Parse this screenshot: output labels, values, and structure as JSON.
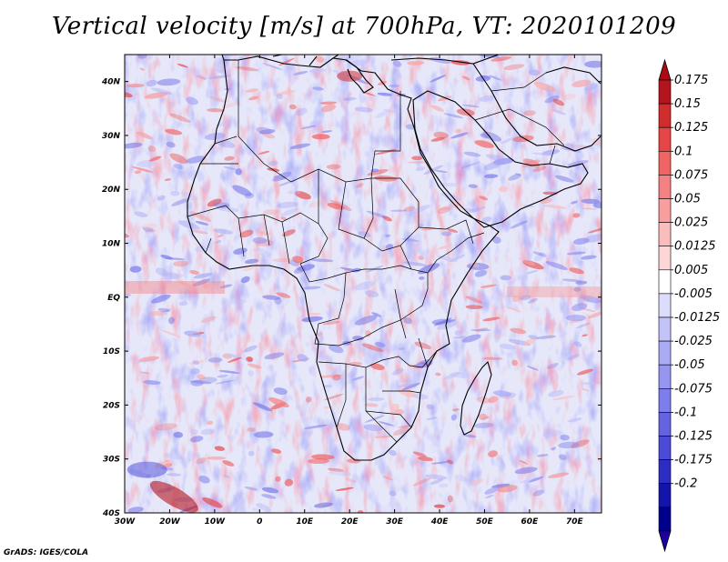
{
  "title": "Vertical velocity [m/s] at 700hPa, VT: 2020101209",
  "credit": "GrADS: IGES/COLA",
  "map": {
    "lon_range": [
      -30,
      76
    ],
    "lat_range": [
      -40,
      45
    ],
    "lat_ticks": [
      {
        "value": 40,
        "label": "40N"
      },
      {
        "value": 30,
        "label": "30N"
      },
      {
        "value": 20,
        "label": "20N"
      },
      {
        "value": 10,
        "label": "10N"
      },
      {
        "value": 0,
        "label": "EQ"
      },
      {
        "value": -10,
        "label": "10S"
      },
      {
        "value": -20,
        "label": "20S"
      },
      {
        "value": -30,
        "label": "30S"
      },
      {
        "value": -40,
        "label": "40S"
      }
    ],
    "lon_ticks": [
      {
        "value": -30,
        "label": "30W"
      },
      {
        "value": -20,
        "label": "20W"
      },
      {
        "value": -10,
        "label": "10W"
      },
      {
        "value": 0,
        "label": "0"
      },
      {
        "value": 10,
        "label": "10E"
      },
      {
        "value": 20,
        "label": "20E"
      },
      {
        "value": 30,
        "label": "30E"
      },
      {
        "value": 40,
        "label": "40E"
      },
      {
        "value": 50,
        "label": "50E"
      },
      {
        "value": 60,
        "label": "60E"
      },
      {
        "value": 70,
        "label": "70E"
      }
    ]
  },
  "colorbar": {
    "levels": [
      "0.175",
      "0.15",
      "0.125",
      "0.1",
      "0.075",
      "0.05",
      "0.025",
      "0.0125",
      "0.005",
      "-0.005",
      "-0.0125",
      "-0.025",
      "-0.05",
      "-0.075",
      "-0.1",
      "-0.125",
      "-0.175",
      "-0.2"
    ],
    "colors": [
      "#b4141e",
      "#d22d2d",
      "#e64646",
      "#f06464",
      "#f58282",
      "#f89e9e",
      "#fbbcbc",
      "#fdd7d7",
      "#ffffff",
      "#dcdcfc",
      "#c3c3fa",
      "#aaaaf5",
      "#9696f0",
      "#7d7deb",
      "#6464e1",
      "#4b4bd7",
      "#2d2dc3",
      "#1414aa",
      "#00008c"
    ],
    "top_color": "#aa0a14",
    "bottom_color": "#1e00a0"
  },
  "colors": {
    "ocean_base": "#e6e8fa",
    "land_base": "#d8d6f2",
    "coast": "#000000"
  }
}
